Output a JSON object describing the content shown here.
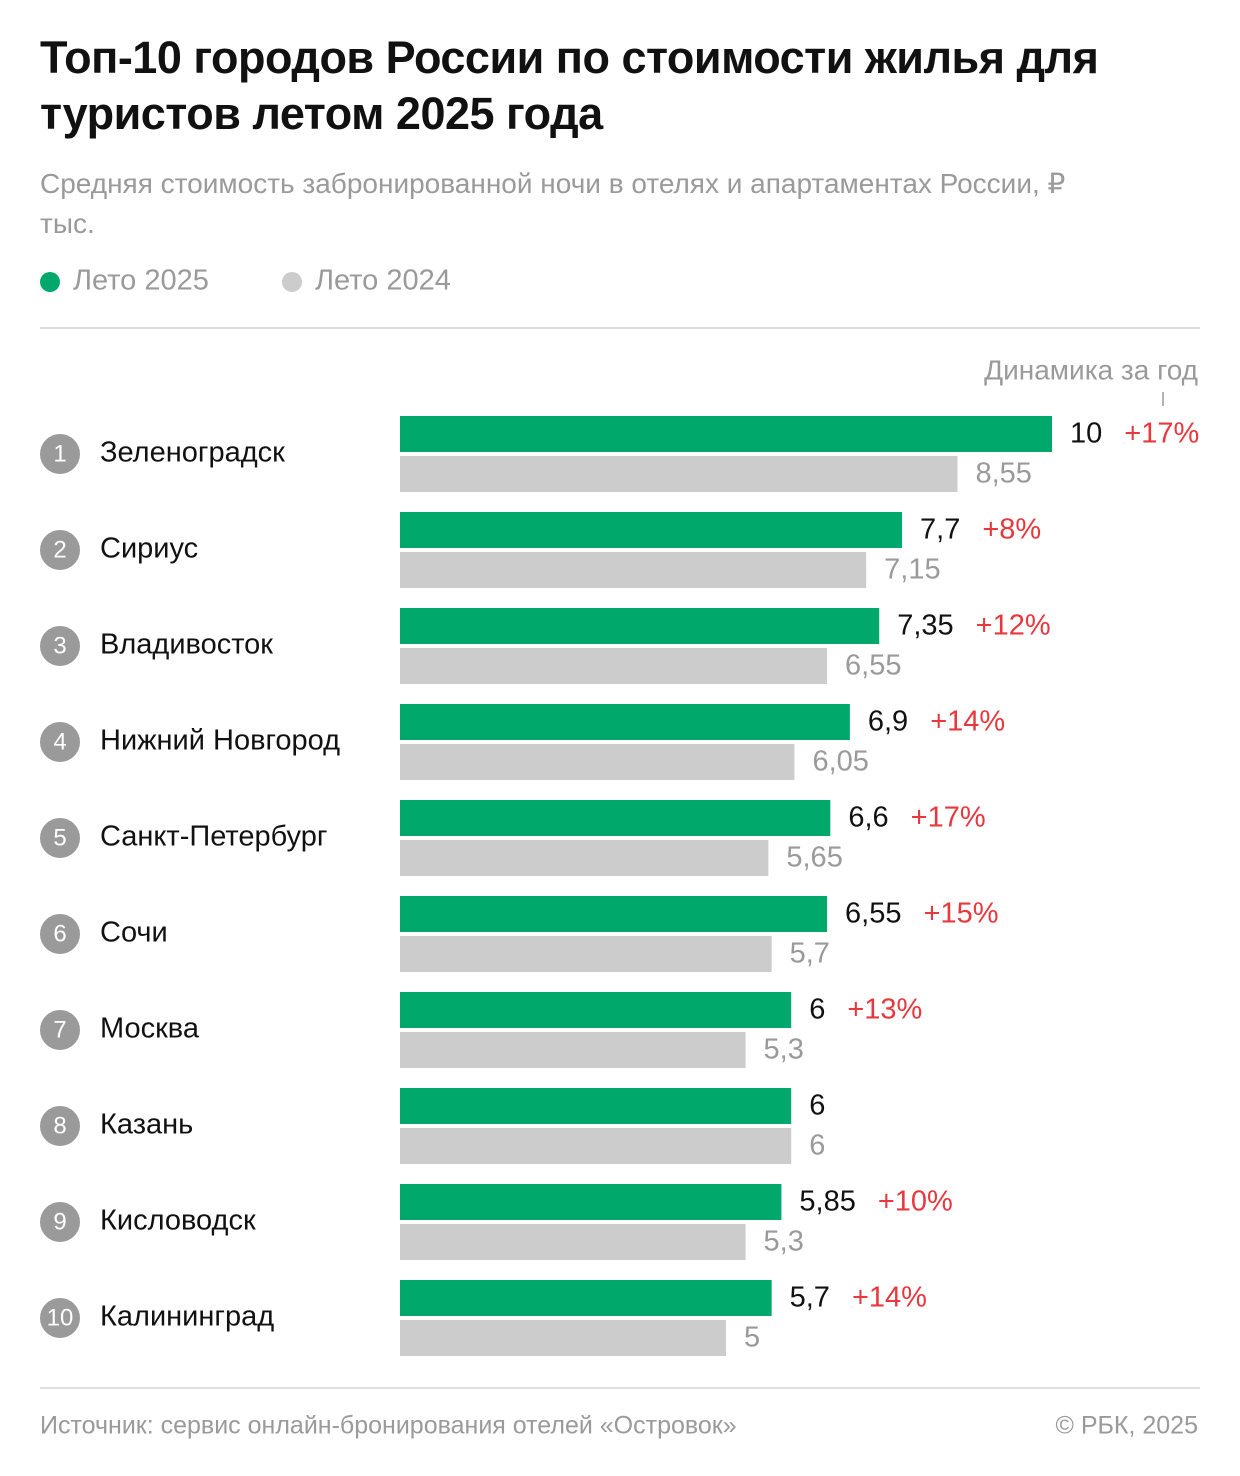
{
  "chart_data": {
    "type": "bar",
    "title": "Топ-10 городов России по стоимости жилья для туристов летом 2025 года",
    "subtitle": "Средняя стоимость забронированной ночи в отелях и апартаментах России, ₽ тыс.",
    "change_header": "Динамика за год",
    "ranks": [
      1,
      2,
      3,
      4,
      5,
      6,
      7,
      8,
      9,
      10
    ],
    "categories": [
      "Зеленоградск",
      "Сириус",
      "Владивосток",
      "Нижний Новгород",
      "Санкт-Петербург",
      "Сочи",
      "Москва",
      "Казань",
      "Кисловодск",
      "Калининград"
    ],
    "series": [
      {
        "name": "Лето 2025",
        "color": "#00a86b",
        "values": [
          10,
          7.7,
          7.35,
          6.9,
          6.6,
          6.55,
          6,
          6,
          5.85,
          5.7
        ],
        "value_labels": [
          "10",
          "7,7",
          "7,35",
          "6,9",
          "6,6",
          "6,55",
          "6",
          "6",
          "5,85",
          "5,7"
        ]
      },
      {
        "name": "Лето 2024",
        "color": "#cccccc",
        "values": [
          8.55,
          7.15,
          6.55,
          6.05,
          5.65,
          5.7,
          5.3,
          6,
          5.3,
          5
        ],
        "value_labels": [
          "8,55",
          "7,15",
          "6,55",
          "6,05",
          "5,65",
          "5,7",
          "5,3",
          "6",
          "5,3",
          "5"
        ]
      }
    ],
    "change_labels": [
      "+17%",
      "+8%",
      "+12%",
      "+14%",
      "+17%",
      "+15%",
      "+13%",
      null,
      "+10%",
      "+14%"
    ],
    "xlim": [
      0,
      10
    ],
    "source": "Источник: сервис онлайн-бронирования отелей «Островок»",
    "copyright": "© РБК, 2025"
  }
}
